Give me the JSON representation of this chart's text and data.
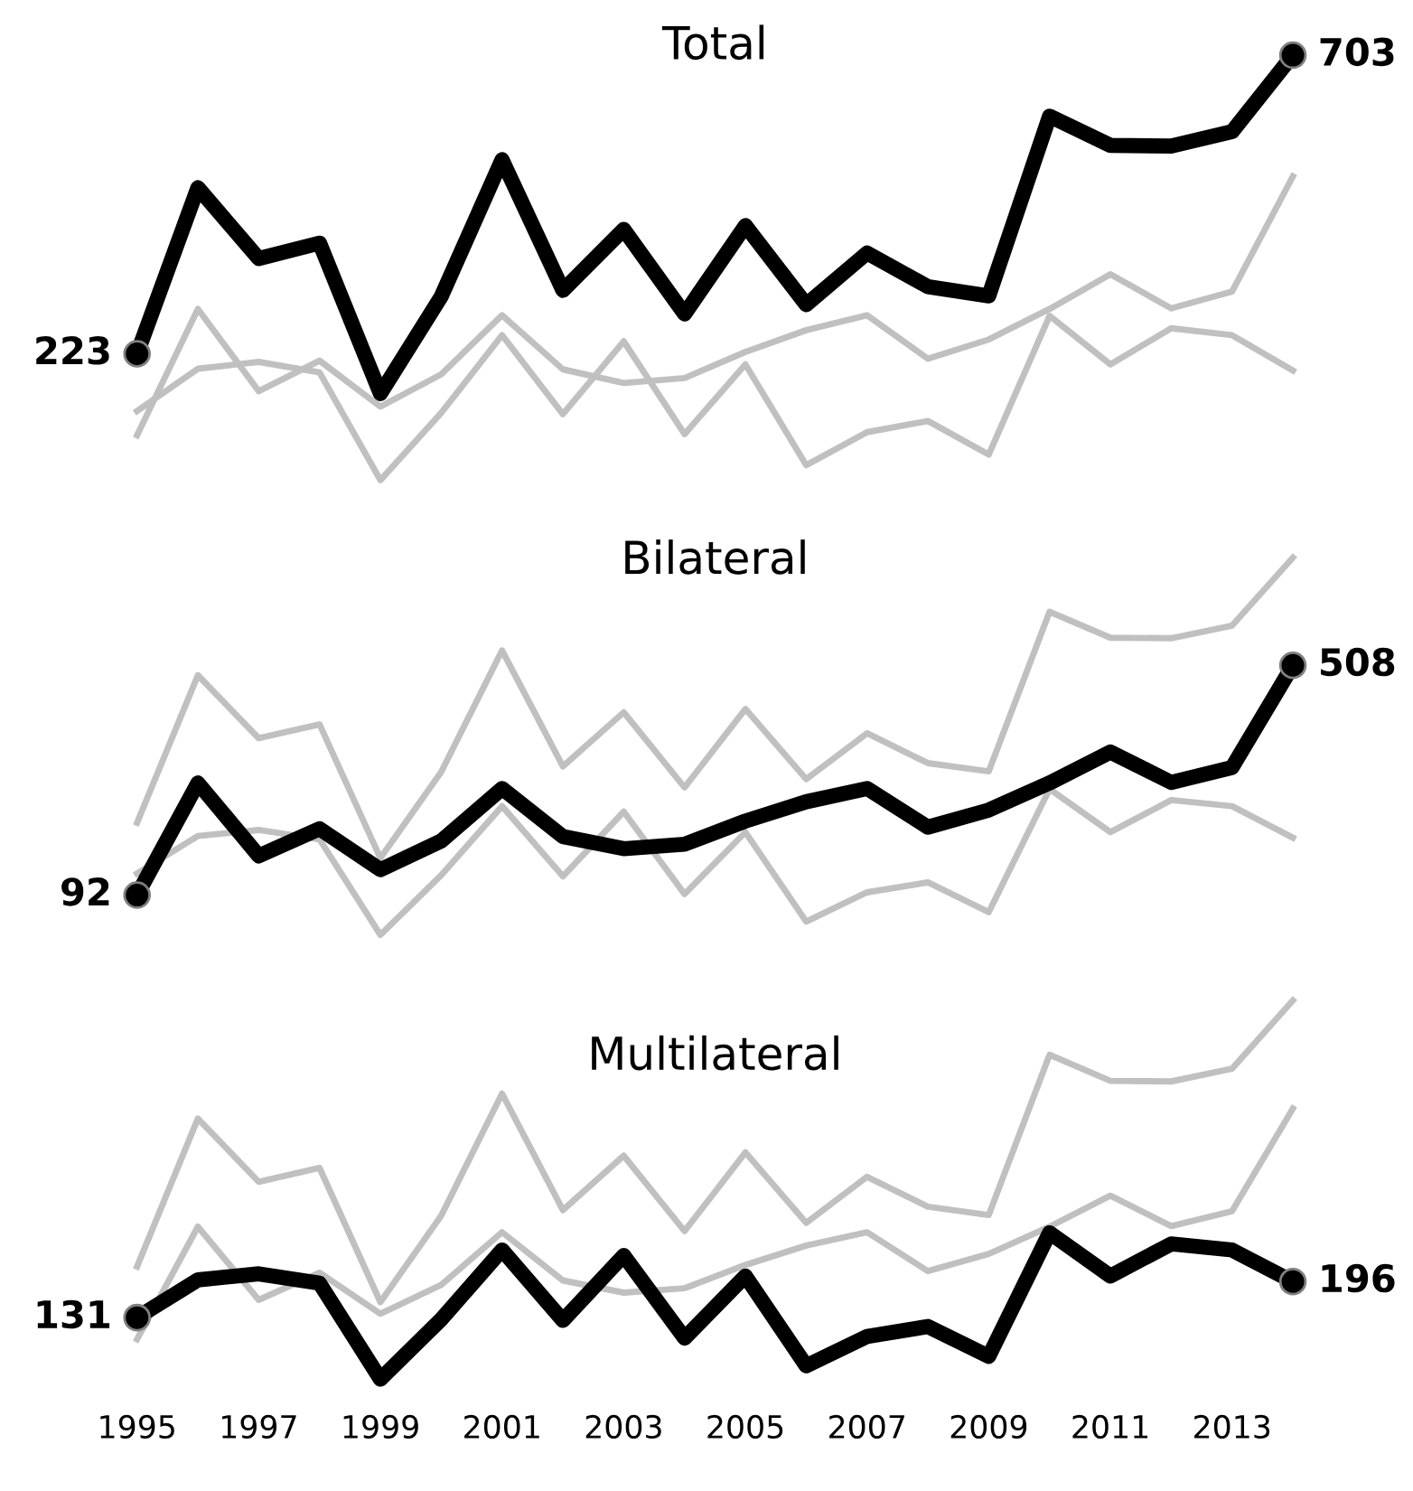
{
  "chart_data": [
    {
      "type": "line",
      "title": "Total",
      "legend": false,
      "grid": false,
      "tick_labels": false,
      "marker": "none",
      "line_style": "solid",
      "categories": [
        "1995",
        null,
        "1997",
        null,
        "1999",
        null,
        "2001",
        null,
        "2003",
        null,
        "2005",
        null,
        "2007",
        null,
        "2009",
        null,
        "2011",
        null,
        "2013",
        null
      ],
      "series": [
        {
          "color": "#000000",
          "values": [
            223,
            490,
            376,
            401,
            159,
            315,
            535,
            325,
            423,
            287,
            429,
            302,
            385,
            331,
            316,
            605,
            558,
            557,
            580,
            703
          ],
          "value_labels": [
            "223",
            null,
            null,
            null,
            null,
            null,
            null,
            null,
            null,
            null,
            null,
            null,
            null,
            null,
            null,
            null,
            null,
            null,
            null,
            "703"
          ]
        },
        {
          "color": "#c0c0c0",
          "values": [
            92,
            295,
            163,
            212,
            138,
            190,
            285,
            198,
            176,
            184,
            226,
            261,
            285,
            215,
            246,
            295,
            351,
            296,
            323,
            508
          ]
        },
        {
          "color": "#c0c0c0",
          "values": [
            131,
            199,
            210,
            193,
            20,
            128,
            253,
            126,
            243,
            94,
            206,
            44,
            97,
            115,
            61,
            284,
            206,
            264,
            253,
            196
          ]
        }
      ]
    },
    {
      "type": "line",
      "title": "Bilateral",
      "legend": false,
      "grid": false,
      "tick_labels": false,
      "marker": "none",
      "line_style": "solid",
      "categories": [
        "1995",
        null,
        "1997",
        null,
        "1999",
        null,
        "2001",
        null,
        "2003",
        null,
        "2005",
        null,
        "2007",
        null,
        "2009",
        null,
        "2011",
        null,
        "2013",
        null
      ],
      "series": [
        {
          "color": "#000000",
          "values": [
            92,
            295,
            163,
            212,
            138,
            190,
            285,
            198,
            176,
            184,
            226,
            261,
            285,
            215,
            246,
            295,
            351,
            296,
            323,
            508
          ],
          "value_labels": [
            "92",
            null,
            null,
            null,
            null,
            null,
            null,
            null,
            null,
            null,
            null,
            null,
            null,
            null,
            null,
            null,
            null,
            null,
            null,
            "508"
          ]
        },
        {
          "color": "#c0c0c0",
          "values": [
            223,
            490,
            376,
            401,
            159,
            315,
            535,
            325,
            423,
            287,
            429,
            302,
            385,
            331,
            316,
            605,
            558,
            557,
            580,
            703
          ]
        },
        {
          "color": "#c0c0c0",
          "values": [
            131,
            199,
            210,
            193,
            20,
            128,
            253,
            126,
            243,
            94,
            206,
            44,
            97,
            115,
            61,
            284,
            206,
            264,
            253,
            196
          ]
        }
      ]
    },
    {
      "type": "line",
      "title": "Multilateral",
      "legend": false,
      "grid": false,
      "tick_labels": "x",
      "marker": "none",
      "line_style": "solid",
      "categories": [
        "1995",
        null,
        "1997",
        null,
        "1999",
        null,
        "2001",
        null,
        "2003",
        null,
        "2005",
        null,
        "2007",
        null,
        "2009",
        null,
        "2011",
        null,
        "2013",
        null
      ],
      "series": [
        {
          "color": "#000000",
          "values": [
            131,
            199,
            210,
            193,
            20,
            128,
            253,
            126,
            243,
            94,
            206,
            44,
            97,
            115,
            61,
            284,
            206,
            264,
            253,
            196
          ],
          "value_labels": [
            "131",
            null,
            null,
            null,
            null,
            null,
            null,
            null,
            null,
            null,
            null,
            null,
            null,
            null,
            null,
            null,
            null,
            null,
            null,
            "196"
          ]
        },
        {
          "color": "#c0c0c0",
          "values": [
            223,
            490,
            376,
            401,
            159,
            315,
            535,
            325,
            423,
            287,
            429,
            302,
            385,
            331,
            316,
            605,
            558,
            557,
            580,
            703
          ]
        },
        {
          "color": "#c0c0c0",
          "values": [
            92,
            295,
            163,
            212,
            138,
            190,
            285,
            198,
            176,
            184,
            226,
            261,
            285,
            215,
            246,
            295,
            351,
            296,
            323,
            508
          ]
        }
      ]
    }
  ]
}
